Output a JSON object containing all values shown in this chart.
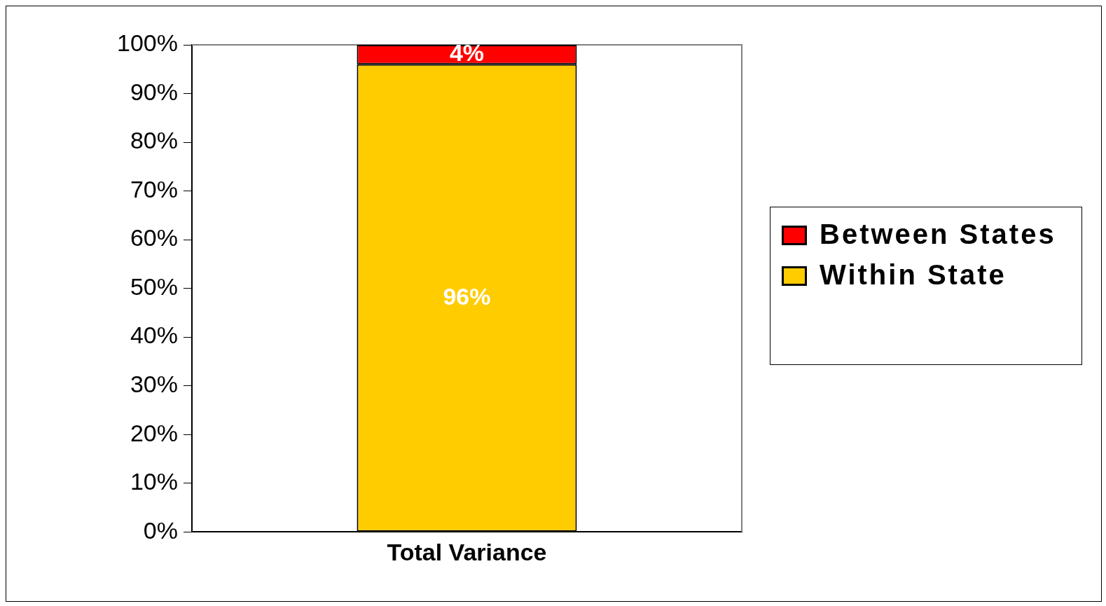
{
  "chart_data": {
    "type": "bar",
    "stacked": true,
    "categories": [
      "Total Variance"
    ],
    "series": [
      {
        "name": "Within State",
        "color": "#ffcc00",
        "values": [
          96
        ],
        "value_labels": [
          "96%"
        ]
      },
      {
        "name": "Between States",
        "color": "#ff0000",
        "values": [
          4
        ],
        "value_labels": [
          "4%"
        ]
      }
    ],
    "ylim": [
      0,
      100
    ],
    "yticks": [
      {
        "value": 0,
        "label": "0%"
      },
      {
        "value": 10,
        "label": "10%"
      },
      {
        "value": 20,
        "label": "20%"
      },
      {
        "value": 30,
        "label": "30%"
      },
      {
        "value": 40,
        "label": "40%"
      },
      {
        "value": 50,
        "label": "50%"
      },
      {
        "value": 60,
        "label": "60%"
      },
      {
        "value": 70,
        "label": "70%"
      },
      {
        "value": 80,
        "label": "80%"
      },
      {
        "value": 90,
        "label": "90%"
      },
      {
        "value": 100,
        "label": "100%"
      }
    ],
    "grid": false,
    "legend": "right"
  }
}
